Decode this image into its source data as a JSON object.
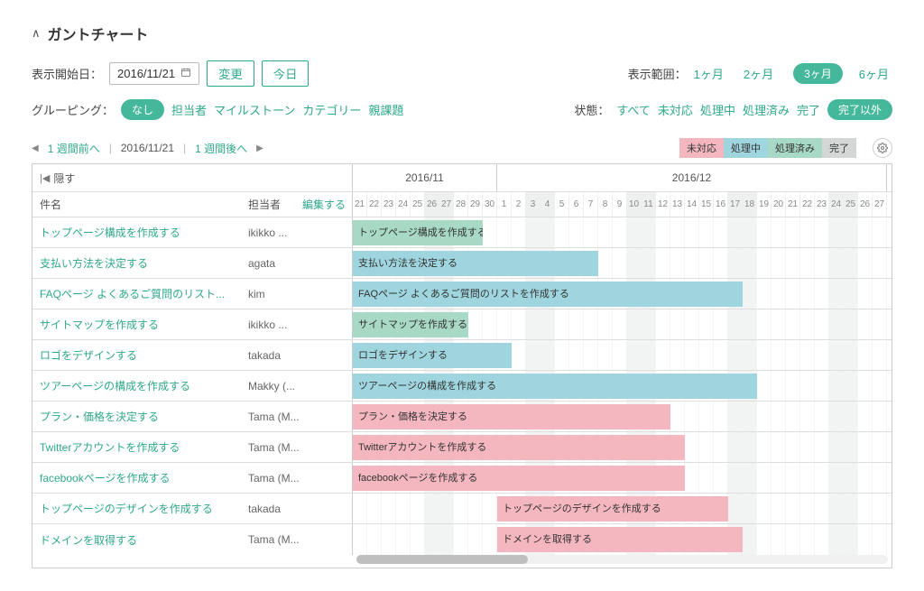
{
  "title": "ガントチャート",
  "startDate": {
    "label": "表示開始日：",
    "value": "2016/11/21",
    "changeBtn": "変更",
    "todayBtn": "今日"
  },
  "range": {
    "label": "表示範囲：",
    "options": [
      "1ヶ月",
      "2ヶ月",
      "3ヶ月",
      "6ヶ月"
    ],
    "activeIndex": 2
  },
  "grouping": {
    "label": "グルーピング：",
    "activePill": "なし",
    "options": [
      "担当者",
      "マイルストーン",
      "カテゴリー",
      "親課題"
    ]
  },
  "status": {
    "label": "状態：",
    "options": [
      "すべて",
      "未対応",
      "処理中",
      "処理済み",
      "完了"
    ],
    "activePill": "完了以外"
  },
  "nav": {
    "prevWeek": "1 週間前へ",
    "date": "2016/11/21",
    "nextWeek": "1 週間後へ"
  },
  "legend": [
    {
      "text": "未対応",
      "bg": "#f4b7c0"
    },
    {
      "text": "処理中",
      "bg": "#9fd5de"
    },
    {
      "text": "処理済み",
      "bg": "#a7d9c4"
    },
    {
      "text": "完了",
      "bg": "#d3d7d5"
    }
  ],
  "hideLabel": "隠す",
  "columns": {
    "name": "件名",
    "assignee": "担当者",
    "edit": "編集する"
  },
  "months": [
    {
      "label": "2016/11",
      "days": 10
    },
    {
      "label": "2016/12",
      "days": 27
    }
  ],
  "dayStart": 21,
  "daysInNov": 30,
  "totalDays": 37,
  "cellWidth": 16,
  "weekendOffsets": [
    5,
    6,
    12,
    13,
    19,
    20,
    26,
    27,
    33,
    34
  ],
  "statusColors": {
    "pending": "#f4b7c0",
    "inprogress": "#9fd5de",
    "done": "#a7d9c4"
  },
  "tasks": [
    {
      "name": "トップページ構成を作成する",
      "assignee": "ikikko ...",
      "barLabel": "トップページ構成を作成する",
      "start": 0,
      "span": 9,
      "status": "done"
    },
    {
      "name": "支払い方法を決定する",
      "assignee": "agata",
      "barLabel": "支払い方法を決定する",
      "start": 0,
      "span": 17,
      "status": "inprogress"
    },
    {
      "name": "FAQページ よくあるご質問のリスト...",
      "assignee": "kim",
      "barLabel": "FAQページ よくあるご質問のリストを作成する",
      "start": 0,
      "span": 27,
      "status": "inprogress"
    },
    {
      "name": "サイトマップを作成する",
      "assignee": "ikikko ...",
      "barLabel": "サイトマップを作成する",
      "start": 0,
      "span": 8,
      "status": "done"
    },
    {
      "name": "ロゴをデザインする",
      "assignee": "takada",
      "barLabel": "ロゴをデザインする",
      "start": 0,
      "span": 11,
      "status": "inprogress"
    },
    {
      "name": "ツアーページの構成を作成する",
      "assignee": "Makky (...",
      "barLabel": "ツアーページの構成を作成する",
      "start": 0,
      "span": 28,
      "status": "inprogress"
    },
    {
      "name": "プラン・価格を決定する",
      "assignee": "Tama (M...",
      "barLabel": "プラン・価格を決定する",
      "start": 0,
      "span": 22,
      "status": "pending"
    },
    {
      "name": "Twitterアカウントを作成する",
      "assignee": "Tama (M...",
      "barLabel": "Twitterアカウントを作成する",
      "start": 0,
      "span": 23,
      "status": "pending"
    },
    {
      "name": "facebookページを作成する",
      "assignee": "Tama (M...",
      "barLabel": "facebookページを作成する",
      "start": 0,
      "span": 23,
      "status": "pending"
    },
    {
      "name": "トップページのデザインを作成する",
      "assignee": "takada",
      "barLabel": "トップページのデザインを作成する",
      "start": 10,
      "span": 16,
      "status": "pending"
    },
    {
      "name": "ドメインを取得する",
      "assignee": "Tama (M...",
      "barLabel": "ドメインを取得する",
      "start": 10,
      "span": 17,
      "status": "pending"
    }
  ]
}
